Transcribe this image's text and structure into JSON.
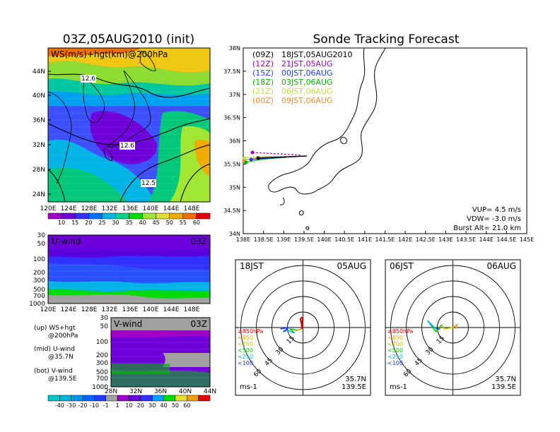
{
  "left_title": "03Z,05AUG2010 (init)",
  "right_title": "Sonde Tracking Forecast",
  "map_panel": {
    "label": "WS(m/s)+hgt(km)@200hPa",
    "lat_ticks": [
      "44N",
      "40N",
      "36N",
      "32N",
      "28N",
      "24N"
    ],
    "lon_ticks": [
      "120E",
      "124E",
      "128E",
      "132E",
      "136E",
      "140E",
      "144E",
      "148E"
    ],
    "contour_labels": [
      "12.6",
      "12.6",
      "12.5"
    ],
    "colorbar_ticks": [
      "10",
      "15",
      "20",
      "25",
      "30",
      "35",
      "40",
      "45",
      "50",
      "55",
      "60"
    ],
    "colorbar_colors": [
      "#a000c8",
      "#6e00dc",
      "#3232ff",
      "#0070ff",
      "#00b4e6",
      "#00d28c",
      "#00dc00",
      "#a0e632",
      "#e6dc32",
      "#f0aa00",
      "#f06e00",
      "#e60000"
    ]
  },
  "u_panel": {
    "label": "U-wind",
    "time": "03Z",
    "p_ticks": [
      "30",
      "50",
      "100",
      "200",
      "300",
      "500",
      "700",
      "1000"
    ],
    "lon_ticks": [
      "120E",
      "124E",
      "128E",
      "132E",
      "136E",
      "140E",
      "144E",
      "148E"
    ]
  },
  "v_panel": {
    "label": "V-wind",
    "time": "03Z",
    "p_ticks": [
      "30",
      "50",
      "100",
      "200",
      "300",
      "500",
      "700",
      "1000"
    ],
    "lat_ticks": [
      "28N",
      "32N",
      "36N",
      "40N",
      "44N"
    ]
  },
  "legend_notes": [
    {
      "a": "(up) WS+hgt",
      "b": "@200hPa"
    },
    {
      "a": "(mid) U-wind",
      "b": "@35.7N"
    },
    {
      "a": "(bot) V-wind",
      "b": "@139.5E"
    }
  ],
  "bottom_colorbar": {
    "ticks": [
      "-40",
      "-30",
      "-20",
      "-10",
      "-1",
      "1",
      "10",
      "20",
      "30",
      "40",
      "50",
      "60"
    ],
    "colors": [
      "#00c8c8",
      "#00b4dc",
      "#0096f0",
      "#0064ff",
      "#1e3cff",
      "#a0a0a0",
      "#a000c8",
      "#6400dc",
      "#3232ff",
      "#00a0ff",
      "#00dc00",
      "#e6dc32",
      "#f0a000",
      "#e60000"
    ]
  },
  "track_panel": {
    "lat_ticks": [
      "38N",
      "37.5N",
      "37N",
      "36.5N",
      "36N",
      "35.5N",
      "35N",
      "34.5N",
      "34N"
    ],
    "lon_ticks": [
      "138E",
      "138.5E",
      "139E",
      "139.5E",
      "140E",
      "140.5E",
      "141E",
      "141.5E",
      "142E",
      "142.5E",
      "143E",
      "143.5E",
      "144E",
      "144.5E",
      "145E"
    ],
    "legend": [
      {
        "tag": "(09Z)",
        "text": "18JST,05AUG2010",
        "color": "#000000"
      },
      {
        "tag": "(12Z)",
        "text": "21JST,05AUG",
        "color": "#a000c8"
      },
      {
        "tag": "(15Z)",
        "text": "00JST,06AUG",
        "color": "#1e3cff"
      },
      {
        "tag": "(18Z)",
        "text": "03JST,06AUG",
        "color": "#00b400"
      },
      {
        "tag": "(21Z)",
        "text": "06JST,06AUG",
        "color": "#c8dc32"
      },
      {
        "tag": "(00Z)",
        "text": "09JST,06AUG",
        "color": "#f08c28"
      }
    ],
    "info": [
      "VUP= 4.5 m/s",
      "VDW= -3.0 m/s",
      "Burst Alt= 21.0 km"
    ]
  },
  "hodographs": [
    {
      "time": "18JST",
      "date": "05AUG",
      "lat": "35.7N",
      "lon": "139.5E",
      "units": "ms-1",
      "ring_labels": [
        "15",
        "30",
        "45",
        "60"
      ],
      "levels": [
        {
          "label": "≥850hPa",
          "color": "#e60000"
        },
        {
          "label": "<850",
          "color": "#f0a000"
        },
        {
          "label": "<700",
          "color": "#c8c800"
        },
        {
          "label": "<500",
          "color": "#00c800"
        },
        {
          "label": "<250",
          "color": "#00b4dc"
        },
        {
          "label": "<100",
          "color": "#1e3cff"
        }
      ]
    },
    {
      "time": "06JST",
      "date": "06AUG",
      "lat": "35.7N",
      "lon": "139.5E",
      "units": "ms-1",
      "ring_labels": [
        "15",
        "30",
        "45",
        "60"
      ],
      "levels": [
        {
          "label": "≥850hPa",
          "color": "#e60000"
        },
        {
          "label": "<850",
          "color": "#f0a000"
        },
        {
          "label": "<700",
          "color": "#c8c800"
        },
        {
          "label": "<500",
          "color": "#00c800"
        },
        {
          "label": "<250",
          "color": "#00b4dc"
        },
        {
          "label": "<100",
          "color": "#1e3cff"
        }
      ]
    }
  ]
}
